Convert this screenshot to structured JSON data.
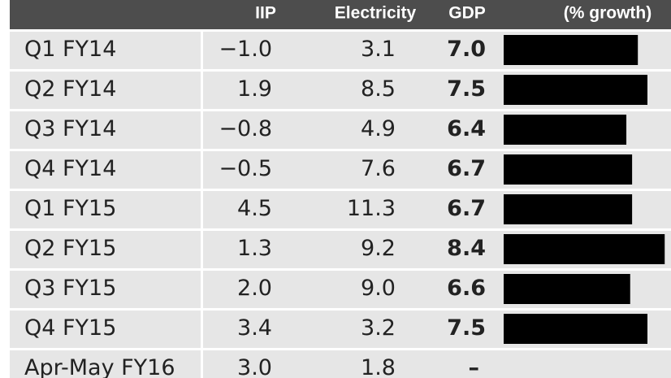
{
  "header": {
    "iip": "IIP",
    "electricity": "Electricity",
    "gdp": "GDP",
    "growth": "(% growth)"
  },
  "table": {
    "rows": [
      {
        "period": "Q1 FY14",
        "iip": "−1.0",
        "electricity": "3.1",
        "gdp": {
          "value": 7.0,
          "label": "7.0"
        }
      },
      {
        "period": "Q2 FY14",
        "iip": "1.9",
        "electricity": "8.5",
        "gdp": {
          "value": 7.5,
          "label": "7.5"
        }
      },
      {
        "period": "Q3 FY14",
        "iip": "−0.8",
        "electricity": "4.9",
        "gdp": {
          "value": 6.4,
          "label": "6.4"
        }
      },
      {
        "period": "Q4 FY14",
        "iip": "−0.5",
        "electricity": "7.6",
        "gdp": {
          "value": 6.7,
          "label": "6.7"
        }
      },
      {
        "period": "Q1 FY15",
        "iip": "4.5",
        "electricity": "11.3",
        "gdp": {
          "value": 6.7,
          "label": "6.7"
        }
      },
      {
        "period": "Q2 FY15",
        "iip": "1.3",
        "electricity": "9.2",
        "gdp": {
          "value": 8.4,
          "label": "8.4"
        }
      },
      {
        "period": "Q3 FY15",
        "iip": "2.0",
        "electricity": "9.0",
        "gdp": {
          "value": 6.6,
          "label": "6.6"
        }
      },
      {
        "period": "Q4 FY15",
        "iip": "3.4",
        "electricity": "3.2",
        "gdp": {
          "value": 7.5,
          "label": "7.5"
        }
      },
      {
        "period": "Apr-May FY16",
        "iip": "3.0",
        "electricity": "1.8",
        "gdp": "–"
      }
    ]
  }
}
